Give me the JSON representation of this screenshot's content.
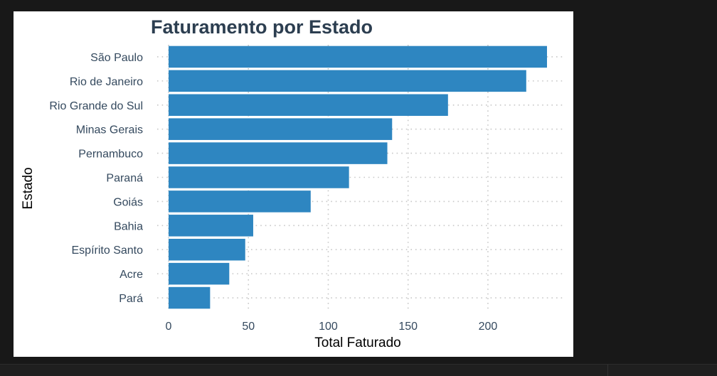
{
  "chart_data": {
    "type": "bar",
    "orientation": "horizontal",
    "title": "Faturamento por Estado",
    "xlabel": "Total Faturado",
    "ylabel": "Estado",
    "categories": [
      "São Paulo",
      "Rio de Janeiro",
      "Rio Grande do Sul",
      "Minas Gerais",
      "Pernambuco",
      "Paraná",
      "Goiás",
      "Bahia",
      "Espírito Santo",
      "Acre",
      "Pará"
    ],
    "values": [
      237,
      224,
      175,
      140,
      137,
      113,
      89,
      53,
      48,
      38,
      26
    ],
    "xlim": [
      0,
      245
    ],
    "xticks": [
      0,
      50,
      100,
      150,
      200
    ],
    "grid": true,
    "legend": "none",
    "bar_color": "#2e86c1",
    "grid_color": "#c8c8c8"
  }
}
